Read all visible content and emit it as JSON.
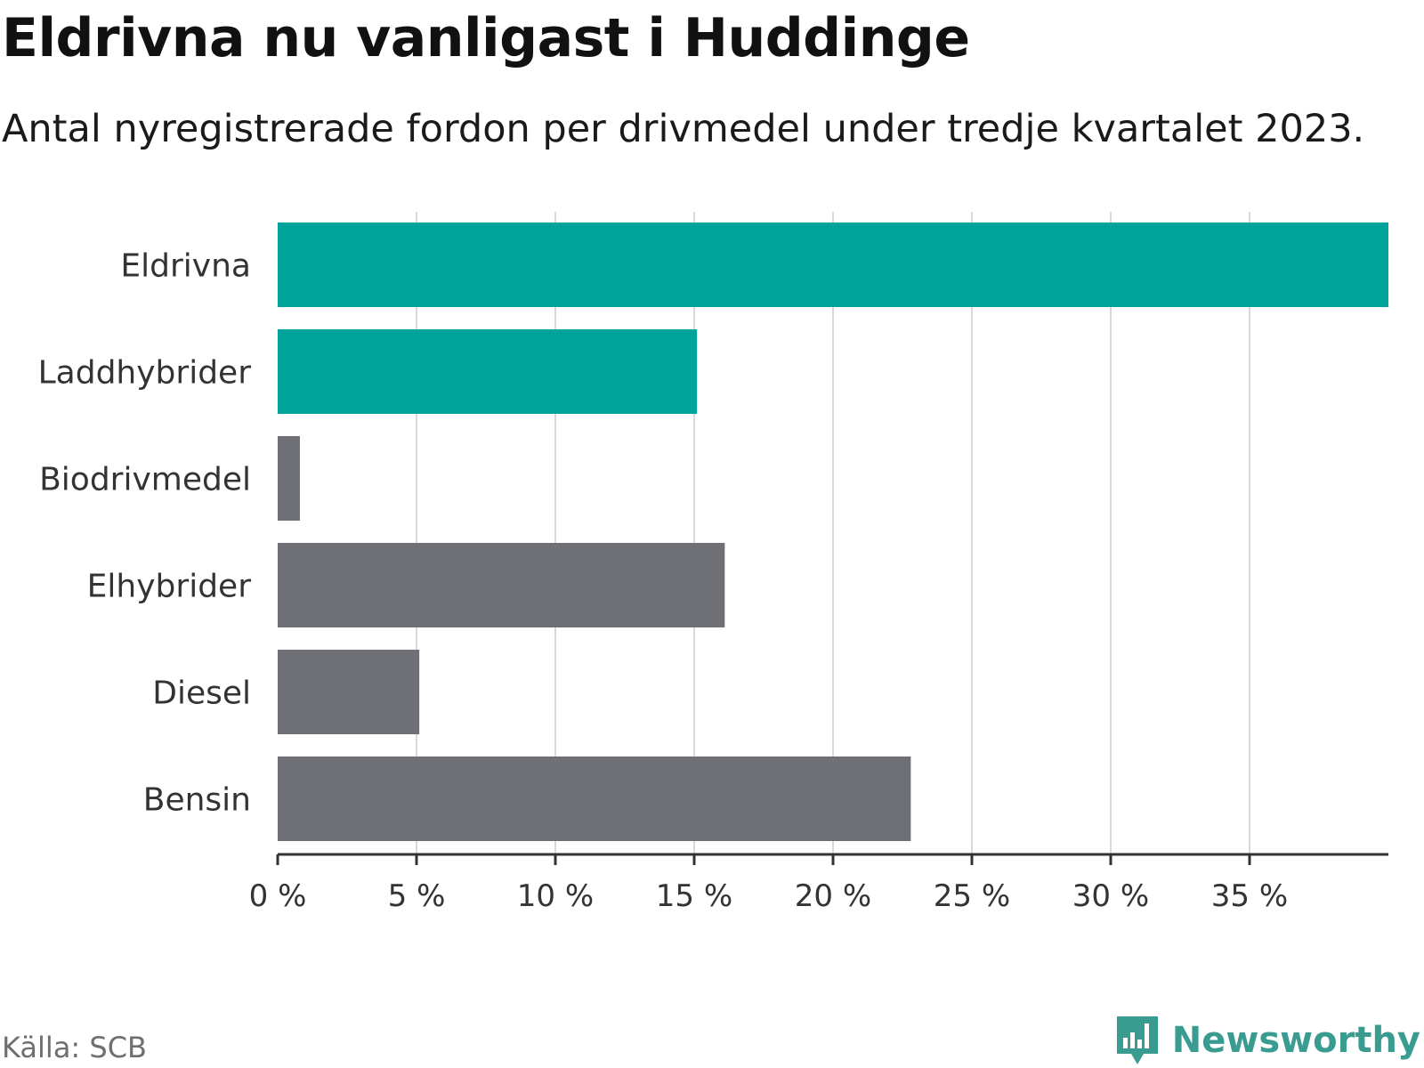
{
  "header": {
    "title": "Eldrivna nu vanligast i Huddinge",
    "subtitle": "Antal nyregistrerade fordon per drivmedel under tredje kvartalet 2023."
  },
  "chart_data": {
    "type": "bar",
    "orientation": "horizontal",
    "title": "Eldrivna nu vanligast i Huddinge",
    "subtitle": "Antal nyregistrerade fordon per drivmedel under tredje kvartalet 2023.",
    "xlabel": "",
    "ylabel": "",
    "unit": "%",
    "xlim": [
      0,
      40
    ],
    "ticks": [
      0,
      5,
      10,
      15,
      20,
      25,
      30,
      35
    ],
    "tick_labels": [
      "0 %",
      "5 %",
      "10 %",
      "15 %",
      "20 %",
      "25 %",
      "30 %",
      "35 %"
    ],
    "grid": true,
    "categories": [
      "Eldrivna",
      "Laddhybrider",
      "Biodrivmedel",
      "Elhybrider",
      "Diesel",
      "Bensin"
    ],
    "values": [
      40.0,
      15.1,
      0.8,
      16.1,
      5.1,
      22.8
    ],
    "colors": [
      "#00a49a",
      "#00a49a",
      "#6f6f76",
      "#6f6f76",
      "#6f6f76",
      "#6f6f76"
    ]
  },
  "footer": {
    "source": "Källa: SCB",
    "brand": "Newsworthy"
  },
  "colors": {
    "highlight": "#00a49a",
    "neutral": "#6f6f76",
    "grid": "#d9d9d9",
    "axis": "#333333",
    "brand": "#3a9b91"
  }
}
